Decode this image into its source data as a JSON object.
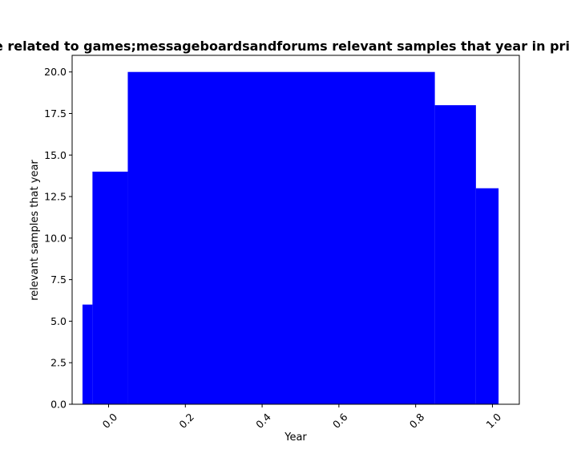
{
  "chart_data": {
    "type": "bar",
    "title": "re related to games;messageboardsandforums relevant samples that year in pri",
    "xlabel": "Year",
    "ylabel": "relevant samples that year",
    "xlim": [
      -0.095,
      1.07
    ],
    "ylim": [
      0,
      21
    ],
    "x_ticks": [
      0.0,
      0.2,
      0.4,
      0.6,
      0.8,
      1.0
    ],
    "x_tick_labels": [
      "0.0",
      "0.2",
      "0.4",
      "0.6",
      "0.8",
      "1.0"
    ],
    "y_ticks": [
      0.0,
      2.5,
      5.0,
      7.5,
      10.0,
      12.5,
      15.0,
      17.5,
      20.0
    ],
    "y_tick_labels": [
      "0.0",
      "2.5",
      "5.0",
      "7.5",
      "10.0",
      "12.5",
      "15.0",
      "17.5",
      "20.0"
    ],
    "bar_color": "#0000ff",
    "grid": false,
    "bars": [
      {
        "x0": -0.068,
        "x1": -0.042,
        "value": 6
      },
      {
        "x0": -0.042,
        "x1": 0.05,
        "value": 14
      },
      {
        "x0": 0.05,
        "x1": 0.85,
        "value": 20
      },
      {
        "x0": 0.85,
        "x1": 0.957,
        "value": 18
      },
      {
        "x0": 0.957,
        "x1": 1.016,
        "value": 13
      }
    ]
  }
}
